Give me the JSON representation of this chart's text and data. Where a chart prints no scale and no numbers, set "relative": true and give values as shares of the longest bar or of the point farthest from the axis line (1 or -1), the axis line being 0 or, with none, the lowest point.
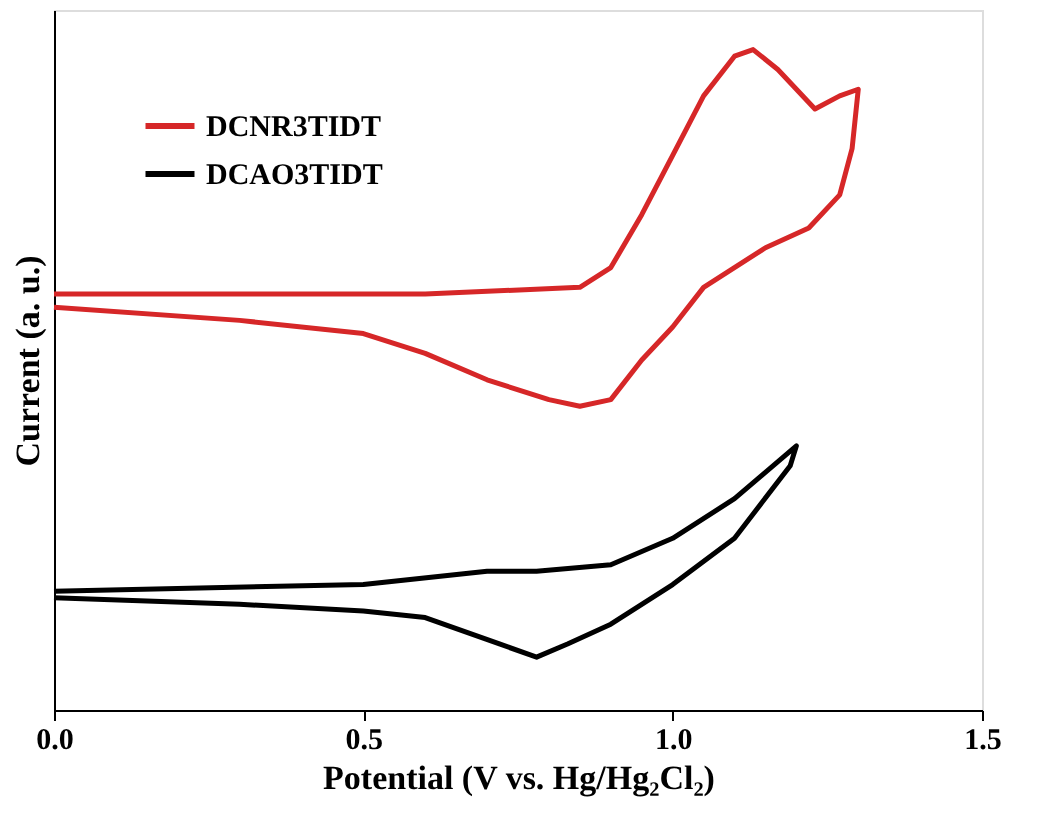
{
  "chart_data": {
    "type": "line",
    "xlabel": "Potential (V vs. Hg/Hg₂Cl₂)",
    "ylabel": "Current (a. u.)",
    "relative": true,
    "xlim": [
      0,
      1.5
    ],
    "xticks": [
      {
        "value": 0,
        "label": "0.0"
      },
      {
        "value": 0.5,
        "label": "0.5"
      },
      {
        "value": 1,
        "label": "1.0"
      },
      {
        "value": 1.5,
        "label": "1.5"
      }
    ],
    "legend": "top left",
    "grid": false,
    "tick_labels": "x",
    "line_style": "solid",
    "marker": "none",
    "series": [
      {
        "name": "DCNR3TIDT",
        "color": "#d62728",
        "x": [
          0,
          0.3,
          0.6,
          0.85,
          0.9,
          0.95,
          1.0,
          1.05,
          1.1,
          1.13,
          1.17,
          1.2,
          1.23,
          1.27,
          1.3,
          1.29,
          1.27,
          1.22,
          1.15,
          1.05,
          1.0,
          0.95,
          0.9,
          0.85,
          0.8,
          0.7,
          0.6,
          0.5,
          0.3,
          0.0
        ],
        "values": [
          0.63,
          0.63,
          0.63,
          0.64,
          0.67,
          0.75,
          0.84,
          0.93,
          0.99,
          1.0,
          0.97,
          0.94,
          0.91,
          0.93,
          0.94,
          0.85,
          0.78,
          0.73,
          0.7,
          0.64,
          0.58,
          0.53,
          0.47,
          0.46,
          0.47,
          0.5,
          0.54,
          0.57,
          0.59,
          0.61
        ]
      },
      {
        "name": "DCAO3TIDT",
        "color": "#000000",
        "x": [
          0,
          0.5,
          0.7,
          0.78,
          0.9,
          1.0,
          1.1,
          1.2,
          1.19,
          1.1,
          1.0,
          0.9,
          0.83,
          0.78,
          0.72,
          0.6,
          0.5,
          0.3,
          0.0
        ],
        "values": [
          0.18,
          0.19,
          0.21,
          0.21,
          0.22,
          0.26,
          0.32,
          0.4,
          0.37,
          0.26,
          0.19,
          0.13,
          0.1,
          0.08,
          0.1,
          0.14,
          0.15,
          0.16,
          0.17
        ]
      }
    ]
  }
}
